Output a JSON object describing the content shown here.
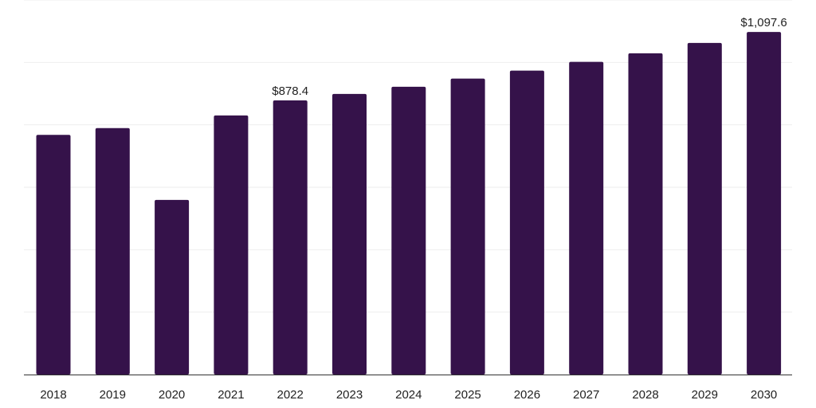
{
  "chart_data": {
    "type": "bar",
    "title": "",
    "xlabel": "",
    "ylabel": "",
    "categories": [
      "2018",
      "2019",
      "2020",
      "2021",
      "2022",
      "2023",
      "2024",
      "2025",
      "2026",
      "2027",
      "2028",
      "2029",
      "2030"
    ],
    "values": [
      767.8,
      789.5,
      559.6,
      830.2,
      878.4,
      898.9,
      921.9,
      948.2,
      973.8,
      1001.9,
      1029.4,
      1062.5,
      1097.6
    ],
    "labels": [
      "",
      "",
      "",
      "",
      "$878.4",
      "",
      "",
      "",
      "",
      "",
      "",
      "",
      "$1,097.6"
    ],
    "ylim": [
      0,
      1200
    ],
    "grid": true,
    "legend": "none",
    "colors": {
      "bar": "#35124a",
      "grid": "#eeeeee",
      "axis": "#333333",
      "text": "#222222"
    }
  }
}
